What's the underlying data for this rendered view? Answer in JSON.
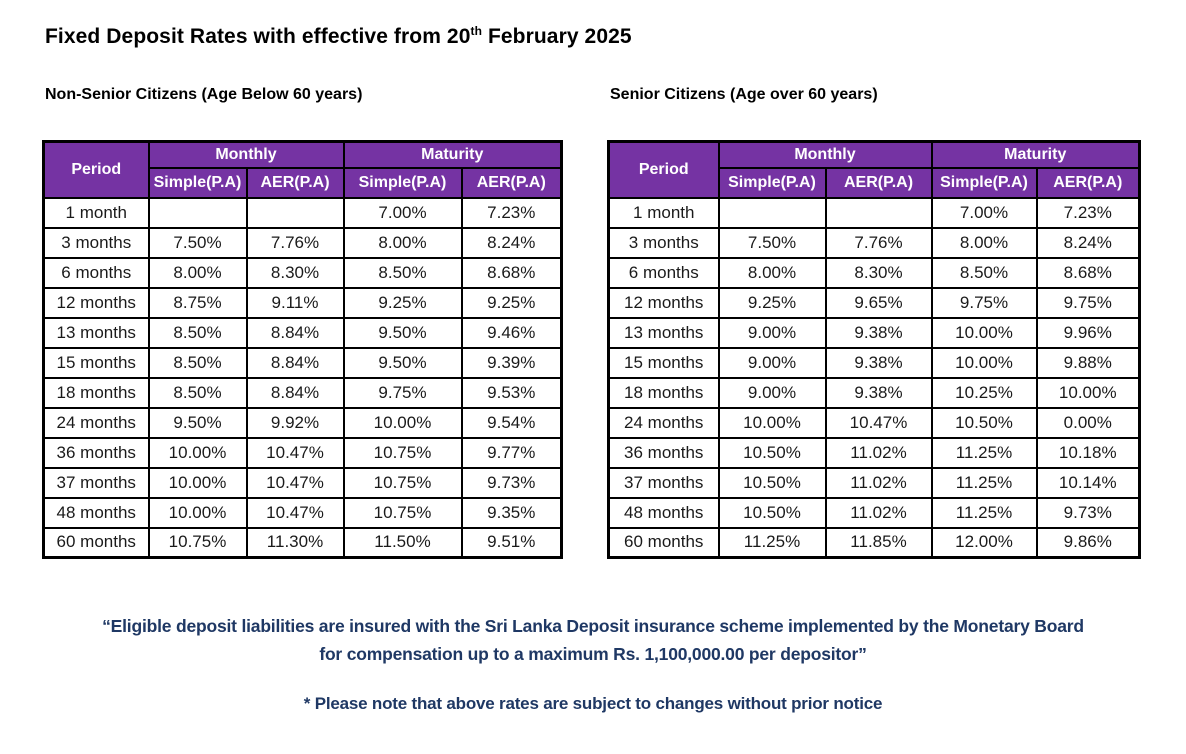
{
  "page": {
    "title": {
      "text_before_sup": "Fixed Deposit Rates with effective from 20",
      "superscript": "th",
      "text_after_sup": " February 2025"
    }
  },
  "tables": [
    {
      "section_label": "Non-Senior Citizens (Age Below 60 years)",
      "header": {
        "period": "Period",
        "monthly": "Monthly",
        "maturity": "Maturity",
        "subheaders": [
          "Simple(P.A)",
          "AER(P.A)",
          "Simple(P.A)",
          "AER(P.A)"
        ]
      },
      "rows": [
        {
          "period": "1 month",
          "values": [
            "",
            "",
            "7.00%",
            "7.23%"
          ]
        },
        {
          "period": "3 months",
          "values": [
            "7.50%",
            "7.76%",
            "8.00%",
            "8.24%"
          ]
        },
        {
          "period": "6 months",
          "values": [
            "8.00%",
            "8.30%",
            "8.50%",
            "8.68%"
          ]
        },
        {
          "period": "12 months",
          "values": [
            "8.75%",
            "9.11%",
            "9.25%",
            "9.25%"
          ]
        },
        {
          "period": "13 months",
          "values": [
            "8.50%",
            "8.84%",
            "9.50%",
            "9.46%"
          ]
        },
        {
          "period": "15 months",
          "values": [
            "8.50%",
            "8.84%",
            "9.50%",
            "9.39%"
          ]
        },
        {
          "period": "18 months",
          "values": [
            "8.50%",
            "8.84%",
            "9.75%",
            "9.53%"
          ]
        },
        {
          "period": "24 months",
          "values": [
            "9.50%",
            "9.92%",
            "10.00%",
            "9.54%"
          ]
        },
        {
          "period": "36 months",
          "values": [
            "10.00%",
            "10.47%",
            "10.75%",
            "9.77%"
          ]
        },
        {
          "period": "37 months",
          "values": [
            "10.00%",
            "10.47%",
            "10.75%",
            "9.73%"
          ]
        },
        {
          "period": "48 months",
          "values": [
            "10.00%",
            "10.47%",
            "10.75%",
            "9.35%"
          ]
        },
        {
          "period": "60 months",
          "values": [
            "10.75%",
            "11.30%",
            "11.50%",
            "9.51%"
          ]
        }
      ]
    },
    {
      "section_label": "Senior Citizens (Age over 60 years)",
      "header": {
        "period": "Period",
        "monthly": "Monthly",
        "maturity": "Maturity",
        "subheaders": [
          "Simple(P.A)",
          "AER(P.A)",
          "Simple(P.A)",
          "AER(P.A)"
        ]
      },
      "rows": [
        {
          "period": "1 month",
          "values": [
            "",
            "",
            "7.00%",
            "7.23%"
          ]
        },
        {
          "period": "3 months",
          "values": [
            "7.50%",
            "7.76%",
            "8.00%",
            "8.24%"
          ]
        },
        {
          "period": "6 months",
          "values": [
            "8.00%",
            "8.30%",
            "8.50%",
            "8.68%"
          ]
        },
        {
          "period": "12 months",
          "values": [
            "9.25%",
            "9.65%",
            "9.75%",
            "9.75%"
          ]
        },
        {
          "period": "13 months",
          "values": [
            "9.00%",
            "9.38%",
            "10.00%",
            "9.96%"
          ]
        },
        {
          "period": "15 months",
          "values": [
            "9.00%",
            "9.38%",
            "10.00%",
            "9.88%"
          ]
        },
        {
          "period": "18 months",
          "values": [
            "9.00%",
            "9.38%",
            "10.25%",
            "10.00%"
          ]
        },
        {
          "period": "24 months",
          "values": [
            "10.00%",
            "10.47%",
            "10.50%",
            "0.00%"
          ]
        },
        {
          "period": "36 months",
          "values": [
            "10.50%",
            "11.02%",
            "11.25%",
            "10.18%"
          ]
        },
        {
          "period": "37 months",
          "values": [
            "10.50%",
            "11.02%",
            "11.25%",
            "10.14%"
          ]
        },
        {
          "period": "48 months",
          "values": [
            "10.50%",
            "11.02%",
            "11.25%",
            "9.73%"
          ]
        },
        {
          "period": "60 months",
          "values": [
            "11.25%",
            "11.85%",
            "12.00%",
            "9.86%"
          ]
        }
      ]
    }
  ],
  "notes": {
    "insurance_line1": "“Eligible deposit liabilities are insured with the Sri Lanka Deposit insurance scheme implemented by the Monetary Board",
    "insurance_line2": "for compensation up to a maximum Rs. 1,100,000.00 per depositor”",
    "rates_disclaimer": "* Please note that above rates are subject to changes without prior notice"
  },
  "colors": {
    "header_purple": "#7533A3",
    "note_navy": "#1F3864",
    "border_black": "#000000"
  }
}
